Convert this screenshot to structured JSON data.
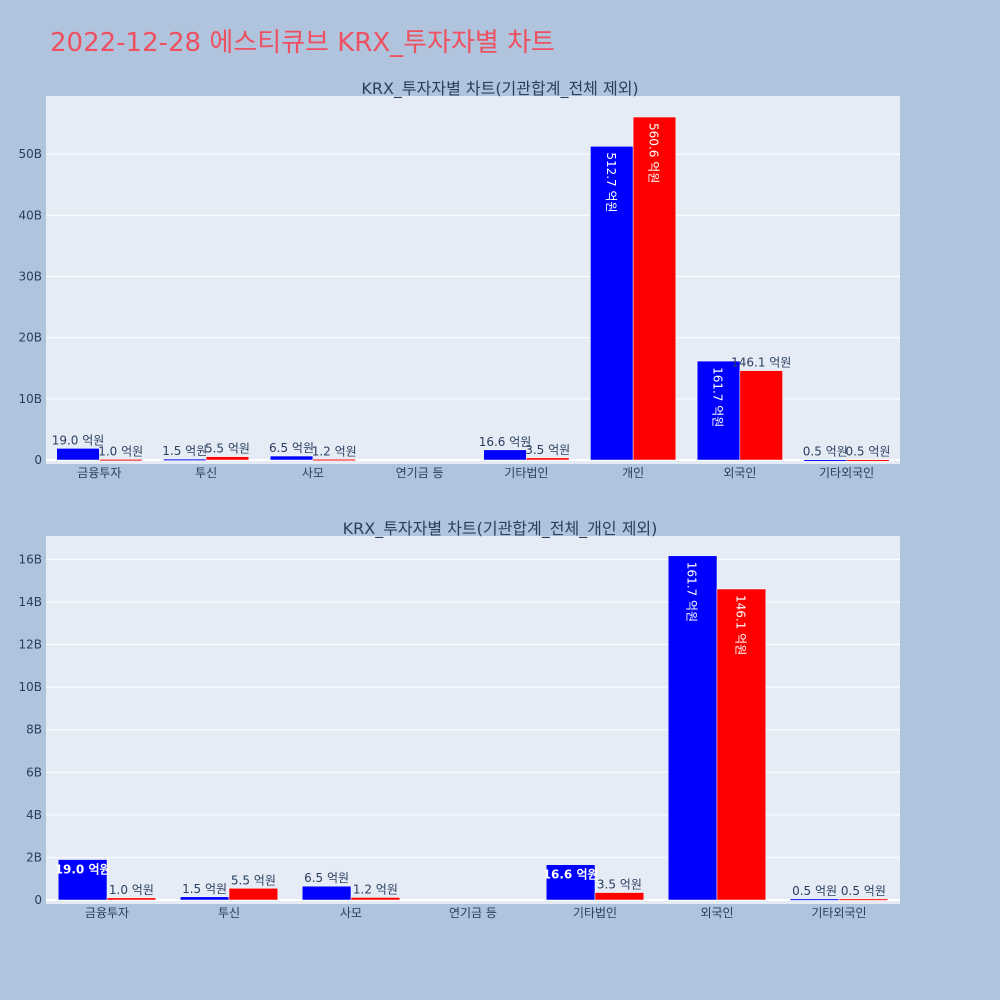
{
  "page": {
    "title": "2022-12-28 에스티큐브 KRX_투자자별 차트"
  },
  "colors": {
    "buy": "#0000ff",
    "sell": "#ff0000",
    "plot_bg": "#e5ecf6",
    "page_bg": "#b0c4de",
    "title": "#ef5060"
  },
  "chart_data": [
    {
      "type": "bar",
      "title": "KRX_투자자별 차트(기관합계_전체 제외)",
      "categories": [
        "금융투자",
        "투신",
        "사모",
        "연기금 등",
        "기타법인",
        "개인",
        "외국인",
        "기타외국인"
      ],
      "series": [
        {
          "values": [
            1900000000.0,
            150000000.0,
            650000000.0,
            0,
            1660000000.0,
            51270000000.0,
            16170000000.0,
            50000000.0
          ],
          "labels": [
            "19.0 억원",
            "1.5 억원",
            "6.5 억원",
            "",
            "16.6 억원",
            "512.7 억원",
            "161.7 억원",
            "0.5 억원"
          ]
        },
        {
          "values": [
            100000000.0,
            550000000.0,
            120000000.0,
            0,
            350000000.0,
            56060000000.0,
            14610000000.0,
            50000000.0
          ],
          "labels": [
            "1.0 억원",
            "5.5 억원",
            "1.2 억원",
            "",
            "3.5 억원",
            "560.6 억원",
            "146.1 억원",
            "0.5 억원"
          ]
        }
      ],
      "ylim": [
        0,
        59500000000.0
      ],
      "yticks": [
        0,
        10000000000.0,
        20000000000.0,
        30000000000.0,
        40000000000.0,
        50000000000.0
      ],
      "ytick_labels": [
        "0",
        "10B",
        "20B",
        "30B",
        "40B",
        "50B"
      ],
      "grid": true,
      "legend": "none"
    },
    {
      "type": "bar",
      "title": "KRX_투자자별 차트(기관합계_전체_개인 제외)",
      "categories": [
        "금융투자",
        "투신",
        "사모",
        "연기금 등",
        "기타법인",
        "외국인",
        "기타외국인"
      ],
      "series": [
        {
          "values": [
            1900000000.0,
            150000000.0,
            650000000.0,
            0,
            1660000000.0,
            16170000000.0,
            50000000.0
          ],
          "labels": [
            "19.0 억원",
            "1.5 억원",
            "6.5 억원",
            "",
            "16.6 억원",
            "161.7 억원",
            "0.5 억원"
          ]
        },
        {
          "values": [
            100000000.0,
            550000000.0,
            120000000.0,
            0,
            350000000.0,
            14610000000.0,
            50000000.0
          ],
          "labels": [
            "1.0 억원",
            "5.5 억원",
            "1.2 억원",
            "",
            "3.5 억원",
            "146.1 억원",
            "0.5 억원"
          ]
        }
      ],
      "ylim": [
        0,
        17100000000.0
      ],
      "yticks": [
        0,
        2000000000.0,
        4000000000.0,
        6000000000.0,
        8000000000.0,
        10000000000.0,
        12000000000.0,
        14000000000.0,
        16000000000.0
      ],
      "ytick_labels": [
        "0",
        "2B",
        "4B",
        "6B",
        "8B",
        "10B",
        "12B",
        "14B",
        "16B"
      ],
      "grid": true,
      "legend": "none"
    }
  ]
}
